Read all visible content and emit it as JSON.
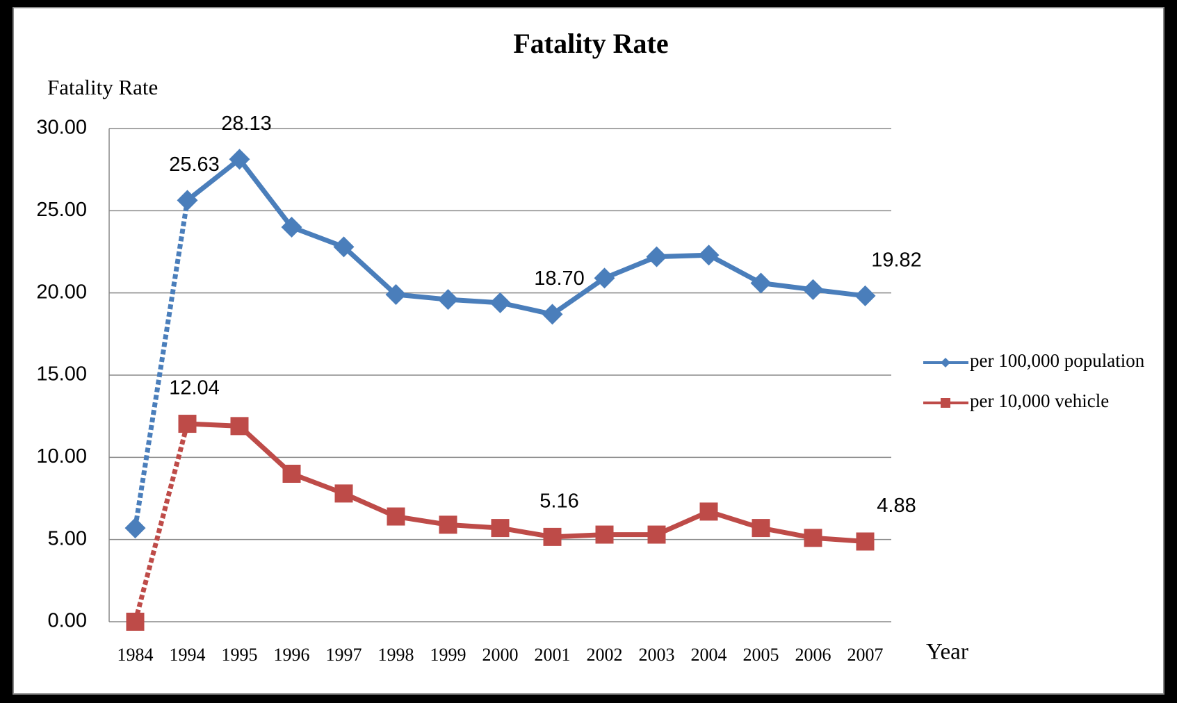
{
  "chart_data": {
    "type": "line",
    "title": "Fatality Rate",
    "y_axis_label": "Fatality Rate",
    "x_axis_label": "Year",
    "categories": [
      "1984",
      "1994",
      "1995",
      "1996",
      "1997",
      "1998",
      "1999",
      "2000",
      "2001",
      "2002",
      "2003",
      "2004",
      "2005",
      "2006",
      "2007"
    ],
    "series": [
      {
        "name": "per 100,000 population",
        "color": "#4a7ebb",
        "marker": "diamond",
        "values": [
          5.7,
          25.63,
          28.13,
          24.0,
          22.8,
          19.9,
          19.6,
          19.4,
          18.7,
          20.9,
          22.2,
          22.3,
          20.6,
          20.2,
          19.82
        ],
        "value_labels": [
          null,
          "25.63",
          "28.13",
          null,
          null,
          null,
          null,
          null,
          "18.70",
          null,
          null,
          null,
          null,
          null,
          "19.82"
        ]
      },
      {
        "name": "per 10,000 vehicle",
        "color": "#be4b48",
        "marker": "square",
        "values": [
          0.0,
          12.04,
          11.9,
          9.0,
          7.8,
          6.4,
          5.9,
          5.7,
          5.16,
          5.3,
          5.3,
          6.7,
          5.7,
          5.1,
          4.88
        ],
        "value_labels": [
          null,
          "12.04",
          null,
          null,
          null,
          null,
          null,
          null,
          "5.16",
          null,
          null,
          null,
          null,
          null,
          "4.88"
        ]
      }
    ],
    "dashed_first_segment": true,
    "ylim": [
      0,
      30
    ],
    "yticks": [
      {
        "value": 0,
        "label": "0.00"
      },
      {
        "value": 5,
        "label": "5.00"
      },
      {
        "value": 10,
        "label": "10.00"
      },
      {
        "value": 15,
        "label": "15.00"
      },
      {
        "value": 20,
        "label": "20.00"
      },
      {
        "value": 25,
        "label": "25.00"
      },
      {
        "value": 30,
        "label": "30.00"
      }
    ],
    "grid": true,
    "legend": "right"
  }
}
